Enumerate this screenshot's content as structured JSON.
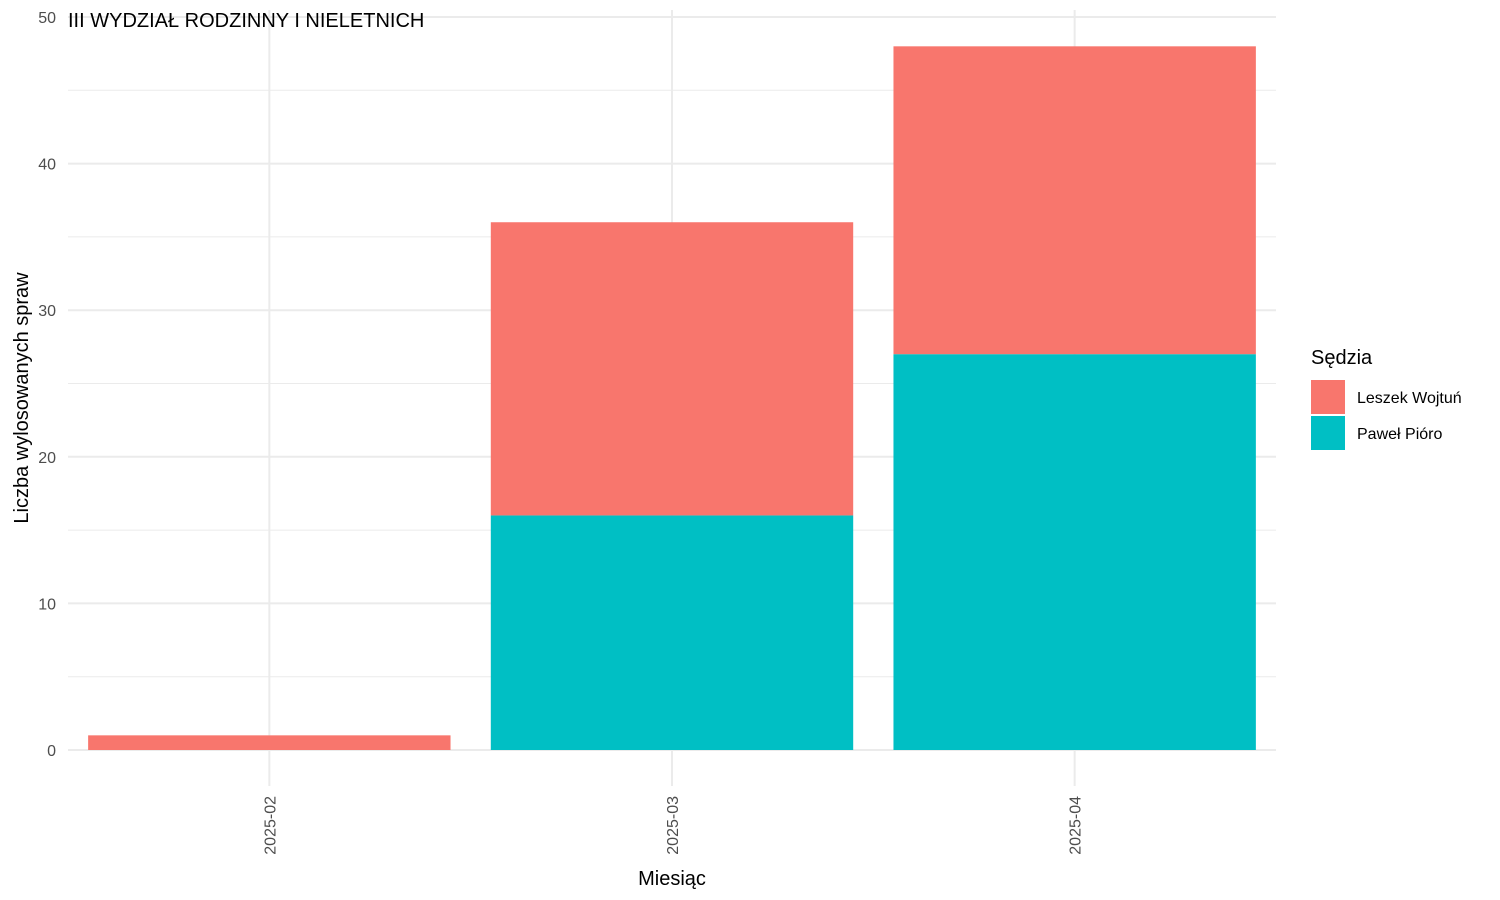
{
  "chart_data": {
    "type": "bar",
    "stacked": true,
    "title": "III WYDZIAŁ RODZINNY I NIELETNICH",
    "xlabel": "Miesiąc",
    "ylabel": "Liczba wylosowanych spraw",
    "categories": [
      "2025-02",
      "2025-03",
      "2025-04"
    ],
    "series": [
      {
        "name": "Leszek Wojtuń",
        "values": [
          1,
          20,
          21
        ],
        "color": "#F8766D"
      },
      {
        "name": "Paweł Pióro",
        "values": [
          0,
          16,
          27
        ],
        "color": "#00BFC4"
      }
    ],
    "ylim": [
      0,
      50
    ],
    "yticks": [
      0,
      10,
      20,
      30,
      40,
      50
    ],
    "grid": true,
    "legend": {
      "title": "Sędzia",
      "position": "right"
    }
  }
}
